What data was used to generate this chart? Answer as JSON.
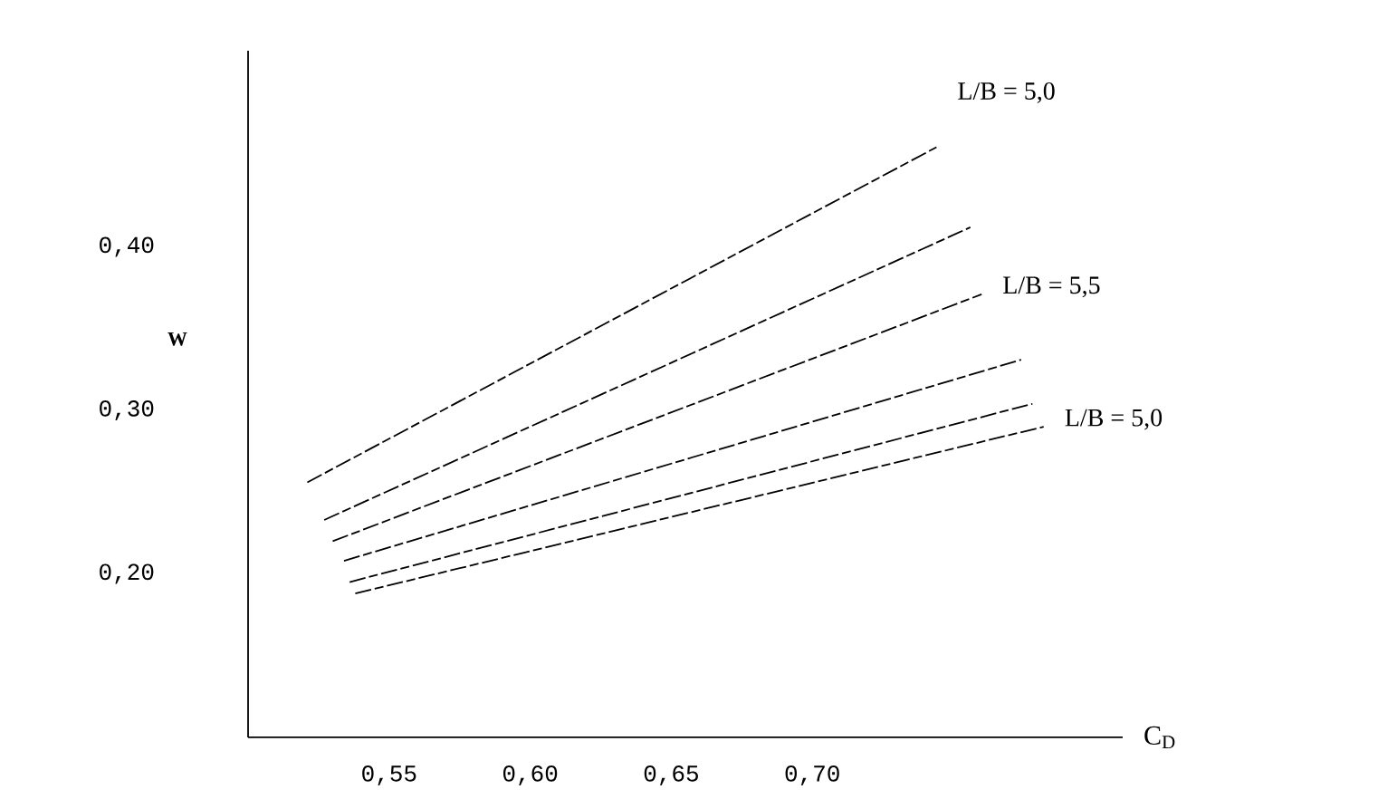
{
  "chart_data": {
    "type": "line",
    "xlabel": "C$_{D}$",
    "ylabel": "W",
    "xlim": [
      0.5,
      0.81
    ],
    "ylim": [
      0.1,
      0.52
    ],
    "xticks": [
      {
        "value": 0.55,
        "label": "0,55"
      },
      {
        "value": 0.6,
        "label": "0,60"
      },
      {
        "value": 0.65,
        "label": "0,65"
      },
      {
        "value": 0.7,
        "label": "0,70"
      }
    ],
    "yticks": [
      {
        "value": 0.2,
        "label": "0,20"
      },
      {
        "value": 0.3,
        "label": "0,30"
      },
      {
        "value": 0.4,
        "label": "0,40"
      }
    ],
    "line_style": "dashed",
    "series": [
      {
        "name": "L/B = 5,0",
        "color": "#000000",
        "x": [
          0.521,
          0.744
        ],
        "values": [
          0.256,
          0.461
        ]
      },
      {
        "color": "#000000",
        "x": [
          0.527,
          0.756
        ],
        "values": [
          0.233,
          0.412
        ]
      },
      {
        "name": "L/B = 5,5",
        "color": "#000000",
        "x": [
          0.53,
          0.76
        ],
        "values": [
          0.22,
          0.371
        ]
      },
      {
        "color": "#000000",
        "x": [
          0.534,
          0.774
        ],
        "values": [
          0.208,
          0.331
        ]
      },
      {
        "color": "#000000",
        "x": [
          0.536,
          0.778
        ],
        "values": [
          0.195,
          0.304
        ]
      },
      {
        "name": "L/B = 5,0",
        "color": "#000000",
        "x": [
          0.538,
          0.782
        ],
        "values": [
          0.188,
          0.29
        ]
      }
    ]
  }
}
